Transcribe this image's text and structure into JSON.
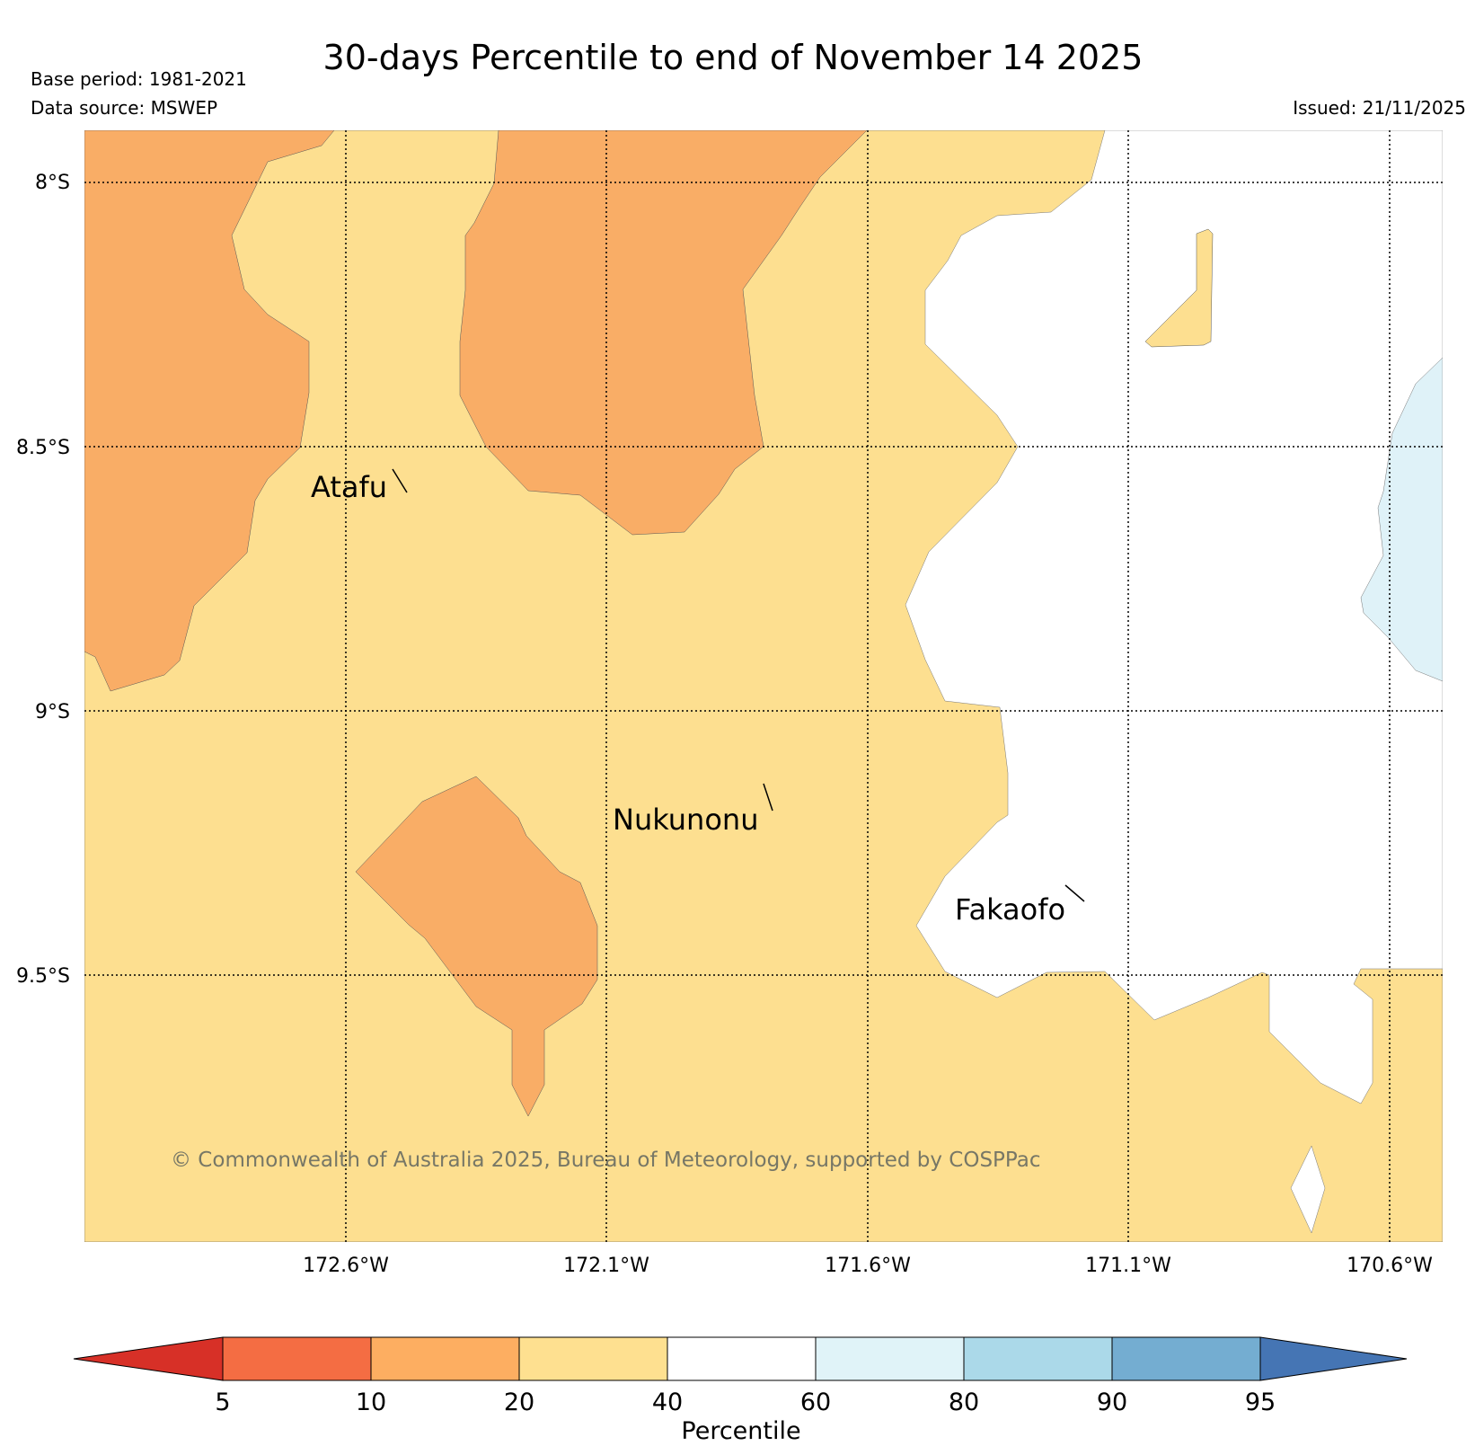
{
  "title": "30-days Percentile to end of November 14 2025",
  "base_period": "Base period: 1981-2021",
  "data_source": "Data source: MSWEP",
  "issued": "Issued: 21/11/2025",
  "copyright": "© Commonwealth of Australia 2025, Bureau of Meteorology, supported by COSPPac",
  "map": {
    "lat_labels": [
      "8°S",
      "8.5°S",
      "9°S",
      "9.5°S"
    ],
    "lon_labels": [
      "172.6°W",
      "172.1°W",
      "171.6°W",
      "171.1°W",
      "170.6°W"
    ],
    "places": [
      "Atafu",
      "Nukunonu",
      "Fakaofo"
    ]
  },
  "colorbar": {
    "label": "Percentile",
    "ticks": [
      "5",
      "10",
      "20",
      "40",
      "60",
      "80",
      "90",
      "95"
    ],
    "colors": [
      "#d73027",
      "#f46d43",
      "#fdae61",
      "#fee090",
      "#ffffff",
      "#e0f3f8",
      "#abd9e9",
      "#74add1",
      "#4575b4"
    ]
  }
}
